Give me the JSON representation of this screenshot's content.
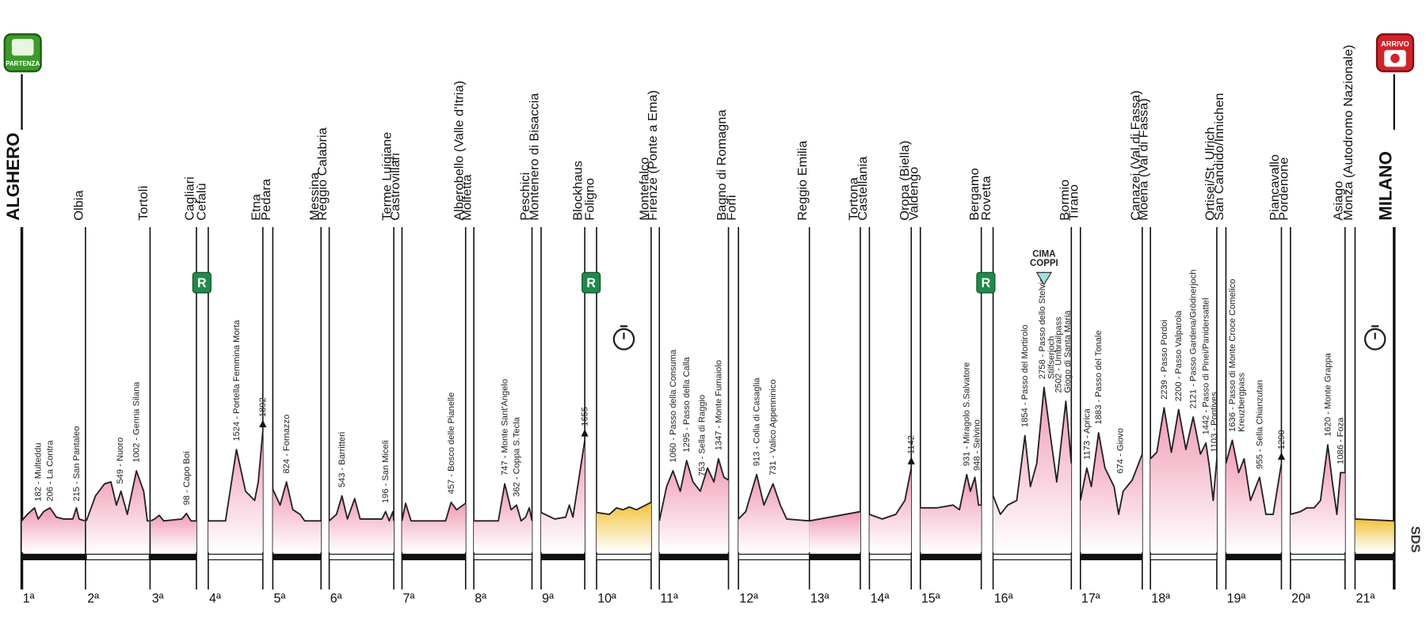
{
  "badges": {
    "departure": "PARTENZA",
    "arrival": "ARRIVO"
  },
  "towns": [
    "ALGHERO",
    "Olbia",
    "Tortolì",
    "Cagliari",
    "Cefalù",
    "Etna",
    "Pedara",
    "Messina",
    "Reggio Calabria",
    "Terme Luigiane",
    "Castrovillari",
    "Alberobello (Valle d'Itria)",
    "Molfetta",
    "Peschici",
    "Montenero di Bisaccia",
    "Blockhaus",
    "Foligno",
    "Montefalco",
    "Firenze (Ponte a Ema)",
    "Bagno di Romagna",
    "Forlì",
    "Reggio Emilia",
    "Tortona",
    "Castellania",
    "Oropa (Biella)",
    "Valdengo",
    "Bergamo",
    "Rovetta",
    "Bormio",
    "Tirano",
    "Canazei (Val di Fassa)",
    "Moena (Val di Fassa)",
    "Ortisei/St. Ulrich",
    "San Candido/Innichen",
    "Piancavallo",
    "Pordenone",
    "Asiago",
    "Monza (Autodromo Nazionale)",
    "MILANO"
  ],
  "stages": [
    {
      "number": "1ª",
      "climbs": [
        "182 - Multeddu",
        "206 - La Contra",
        "215 - San Pantaleo"
      ]
    },
    {
      "number": "2ª",
      "climbs": [
        "549 - Nuoro",
        "1002 - Genna Silana"
      ]
    },
    {
      "number": "3ª",
      "climbs": [
        "98 - Capo Boi"
      ]
    },
    {
      "number": "4ª",
      "climbs": [
        "1524 - Portella Femmina Morta",
        "1892"
      ]
    },
    {
      "number": "5ª",
      "climbs": [
        "824 - Fornazzo"
      ]
    },
    {
      "number": "6ª",
      "climbs": [
        "543 - Barritteri",
        "196 - San Miceli"
      ]
    },
    {
      "number": "7ª",
      "climbs": [
        "457 - Bosco delle Pianelle"
      ]
    },
    {
      "number": "8ª",
      "climbs": [
        "747 - Monte Sant'Angelo",
        "362 - Coppa S.Tecla"
      ]
    },
    {
      "number": "9ª",
      "climbs": [
        "1655"
      ]
    },
    {
      "number": "10ª",
      "climbs": []
    },
    {
      "number": "11ª",
      "climbs": [
        "1060 - Passo della Consuma",
        "1295 - Passo della Calla",
        "753 - Sella di Raggio",
        "1347 - Monte Fumaiolo"
      ]
    },
    {
      "number": "12ª",
      "climbs": [
        "913 - Colla di Casaglia",
        "731 - Valico Appenninico"
      ]
    },
    {
      "number": "13ª",
      "climbs": []
    },
    {
      "number": "14ª",
      "climbs": [
        "1142"
      ]
    },
    {
      "number": "15ª",
      "climbs": [
        "931 - Miragolo S.Salvatore",
        "948 - Selvino"
      ]
    },
    {
      "number": "16ª",
      "climbs": [
        "1854 - Passo del Mortirolo",
        [
          "2758 - Passo dello Stelvio",
          "Stilfserjoch"
        ],
        [
          "2502 - Umbrailpass",
          "Giogo di Santa Maria"
        ]
      ]
    },
    {
      "number": "17ª",
      "climbs": [
        "1173 - Aprica",
        "1883 - Passo del Tonale",
        "674 - Giovo"
      ]
    },
    {
      "number": "18ª",
      "climbs": [
        "2239 - Passo Pordoi",
        "2200 - Passo Valparola",
        "2121 - Passo Gardena/Grödnerjoch",
        "1442 - Passo di Pinei/Panidersattel",
        "1103 - Pontives"
      ]
    },
    {
      "number": "19ª",
      "climbs": [
        [
          "1636 - Passo di Monte Croce Comelico",
          "Kreuzbergpass"
        ],
        "955 - Sella Chianzutan",
        "1290"
      ]
    },
    {
      "number": "20ª",
      "climbs": [
        "1620 - Monte Grappa",
        "1086 - Foza"
      ]
    },
    {
      "number": "21ª",
      "climbs": []
    }
  ],
  "rest_label": "R",
  "cima_coppi": [
    "CIMA",
    "COPPI"
  ],
  "logo": "SDS"
}
